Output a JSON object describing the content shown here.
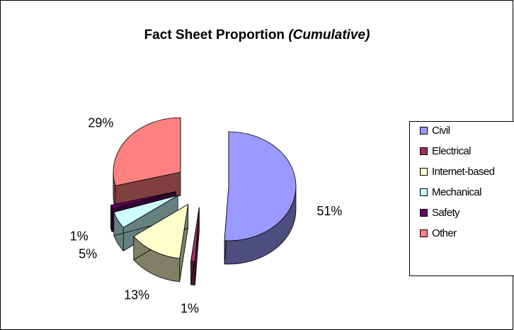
{
  "chart_data": {
    "type": "pie",
    "title": "Fact Sheet Proportion",
    "title_note": "(Cumulative)",
    "categories": [
      "Civil",
      "Electrical",
      "Internet-based",
      "Mechanical",
      "Safety",
      "Other"
    ],
    "values": [
      51,
      1,
      13,
      5,
      1,
      29
    ],
    "value_labels": [
      "51%",
      "1%",
      "13%",
      "5%",
      "1%",
      "29%"
    ],
    "colors": [
      "#9999ff",
      "#993366",
      "#ffffcc",
      "#ccffff",
      "#660066",
      "#ff8080"
    ],
    "legend": "right"
  }
}
